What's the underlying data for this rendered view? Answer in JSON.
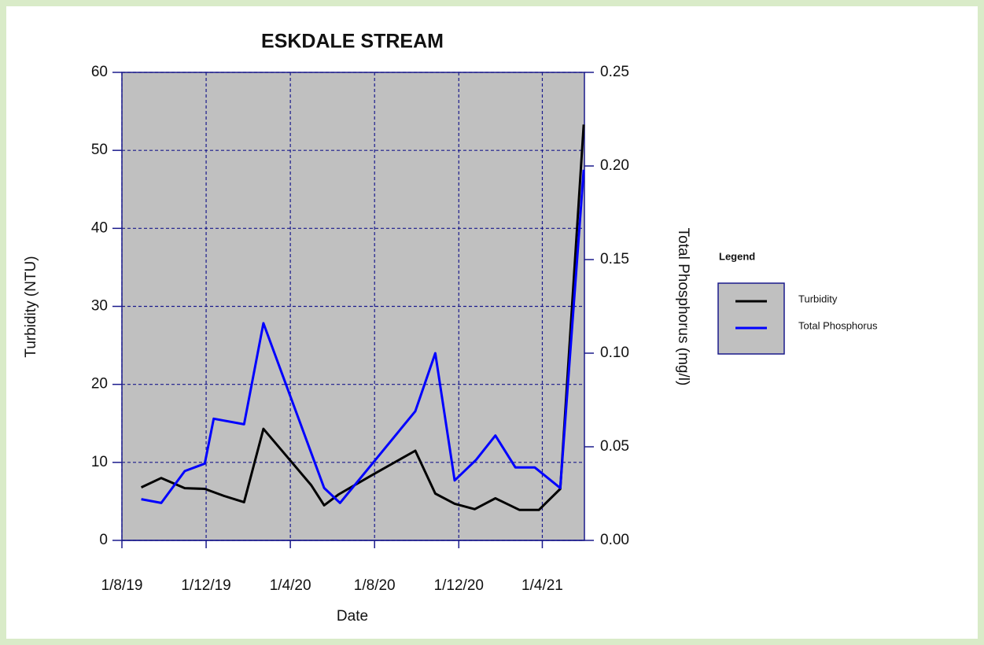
{
  "chart_data": {
    "type": "line",
    "title": "ESKDALE STREAM",
    "xlabel": "Date",
    "ylabel": "Turbidity (NTU)",
    "y2label": "Total Phosphorus (mg/l)",
    "legend_title": "Legend",
    "legend": "right",
    "grid": true,
    "xlim": [
      "2019-08-01",
      "2021-06-01"
    ],
    "xticks": [
      {
        "value": "2019-08-01",
        "label": "1/8/19"
      },
      {
        "value": "2019-12-01",
        "label": "1/12/19"
      },
      {
        "value": "2020-04-01",
        "label": "1/4/20"
      },
      {
        "value": "2020-08-01",
        "label": "1/8/20"
      },
      {
        "value": "2020-12-01",
        "label": "1/12/20"
      },
      {
        "value": "2021-04-01",
        "label": "1/4/21"
      }
    ],
    "ylim": [
      0,
      60
    ],
    "yticks": [
      0,
      10,
      20,
      30,
      40,
      50,
      60
    ],
    "y2lim": [
      0,
      0.25
    ],
    "y2ticks": [
      {
        "value": 0,
        "label": "0.00"
      },
      {
        "value": 0.05,
        "label": "0.05"
      },
      {
        "value": 0.1,
        "label": "0.10"
      },
      {
        "value": 0.15,
        "label": "0.15"
      },
      {
        "value": 0.2,
        "label": "0.20"
      },
      {
        "value": 0.25,
        "label": "0.25"
      }
    ],
    "series": [
      {
        "name": "Turbidity",
        "color": "#000000",
        "x": [
          "2019-08-29",
          "2019-09-27",
          "2019-10-31",
          "2019-11-29",
          "2019-12-27",
          "2020-01-25",
          "2020-02-22",
          "2020-05-01",
          "2020-05-20",
          "2020-06-10",
          "2020-07-31",
          "2020-09-29",
          "2020-10-28",
          "2020-11-25",
          "2020-12-24",
          "2021-01-23",
          "2021-02-27",
          "2021-03-27",
          "2021-04-27",
          "2021-05-31"
        ],
        "values": [
          6.8,
          8.0,
          6.7,
          6.6,
          5.7,
          4.9,
          14.3,
          7.1,
          4.5,
          5.9,
          8.5,
          11.5,
          6.0,
          4.7,
          4.0,
          5.4,
          3.9,
          3.9,
          6.6,
          53.3
        ]
      },
      {
        "name": "Total Phosphorus",
        "color": "#0000ff",
        "axis": "y2",
        "x": [
          "2019-08-29",
          "2019-09-27",
          "2019-10-31",
          "2019-11-29",
          "2019-12-12",
          "2020-01-25",
          "2020-02-22",
          "2020-05-20",
          "2020-06-12",
          "2020-09-29",
          "2020-10-28",
          "2020-11-25",
          "2020-12-26",
          "2021-01-23",
          "2021-02-21",
          "2021-03-21",
          "2021-04-27",
          "2021-05-31"
        ],
        "values": [
          0.022,
          0.02,
          0.037,
          0.041,
          0.065,
          0.062,
          0.116,
          0.028,
          0.02,
          0.069,
          0.1,
          0.032,
          0.043,
          0.056,
          0.039,
          0.039,
          0.028,
          0.198
        ]
      }
    ]
  }
}
